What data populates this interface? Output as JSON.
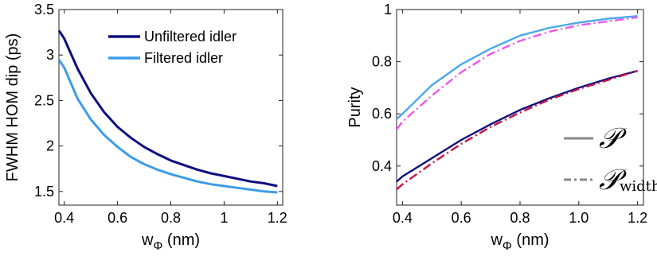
{
  "chart_data": [
    {
      "type": "line",
      "xlabel": "w",
      "xlabel_sub": "Φ",
      "xlabel_unit": " (nm)",
      "ylabel": "FWHM HOM dip (ps)",
      "xlim": [
        0.38,
        1.22
      ],
      "ylim": [
        1.35,
        3.5
      ],
      "xticks": [
        0.4,
        0.6,
        0.8,
        1,
        1.2
      ],
      "xtick_labels": [
        "0.4",
        "0.6",
        "0.8",
        "1",
        "1.2"
      ],
      "yticks": [
        1.5,
        2,
        2.5,
        3,
        3.5
      ],
      "ytick_labels": [
        "1.5",
        "2",
        "2.5",
        "3",
        "3.5"
      ],
      "legend_position": "top-right",
      "series": [
        {
          "name": "Unfiltered idler",
          "color": "#0d0d80",
          "style": "solid",
          "x": [
            0.38,
            0.4,
            0.45,
            0.5,
            0.55,
            0.6,
            0.65,
            0.7,
            0.75,
            0.8,
            0.85,
            0.9,
            0.95,
            1.0,
            1.05,
            1.1,
            1.15,
            1.2
          ],
          "y": [
            3.27,
            3.18,
            2.85,
            2.58,
            2.37,
            2.21,
            2.09,
            1.99,
            1.91,
            1.84,
            1.79,
            1.74,
            1.7,
            1.67,
            1.64,
            1.61,
            1.59,
            1.56
          ]
        },
        {
          "name": "Filtered idler",
          "color": "#3d9be9",
          "style": "solid",
          "x": [
            0.38,
            0.4,
            0.45,
            0.5,
            0.55,
            0.6,
            0.65,
            0.7,
            0.75,
            0.8,
            0.85,
            0.9,
            0.95,
            1.0,
            1.05,
            1.1,
            1.15,
            1.2
          ],
          "y": [
            2.95,
            2.86,
            2.52,
            2.29,
            2.12,
            1.99,
            1.88,
            1.8,
            1.74,
            1.69,
            1.65,
            1.61,
            1.58,
            1.56,
            1.54,
            1.52,
            1.5,
            1.49
          ]
        }
      ]
    },
    {
      "type": "line",
      "xlabel": "w",
      "xlabel_sub": "Φ",
      "xlabel_unit": " (nm)",
      "ylabel": "Purity",
      "xlim": [
        0.38,
        1.22
      ],
      "ylim": [
        0.25,
        1.0
      ],
      "xticks": [
        0.4,
        0.6,
        0.8,
        1.0,
        1.2
      ],
      "xtick_labels": [
        "0.4",
        "0.6",
        "0.8",
        "1.0",
        "1.2"
      ],
      "yticks": [
        0.4,
        0.6,
        0.8,
        1
      ],
      "ytick_labels": [
        "0.4",
        "0.6",
        "0.8",
        "1"
      ],
      "legend_position": "bottom-right",
      "legend": [
        {
          "symbol": "𝒫",
          "subscript": "",
          "style": "solid",
          "color": "#888888"
        },
        {
          "symbol": "𝒫",
          "subscript": "width",
          "style": "dashdot",
          "color": "#888888"
        }
      ],
      "series": [
        {
          "color": "#4aa8ec",
          "style": "solid",
          "x": [
            0.38,
            0.4,
            0.5,
            0.6,
            0.7,
            0.8,
            0.9,
            1.0,
            1.1,
            1.2
          ],
          "y": [
            0.58,
            0.6,
            0.71,
            0.79,
            0.85,
            0.9,
            0.93,
            0.95,
            0.965,
            0.975
          ]
        },
        {
          "color": "#ee55ee",
          "style": "dashdot",
          "x": [
            0.38,
            0.4,
            0.5,
            0.6,
            0.7,
            0.8,
            0.9,
            1.0,
            1.1,
            1.2
          ],
          "y": [
            0.54,
            0.57,
            0.67,
            0.76,
            0.83,
            0.88,
            0.915,
            0.94,
            0.955,
            0.97
          ]
        },
        {
          "color": "#0d0d80",
          "style": "solid",
          "x": [
            0.38,
            0.4,
            0.5,
            0.6,
            0.7,
            0.8,
            0.9,
            1.0,
            1.1,
            1.2
          ],
          "y": [
            0.34,
            0.36,
            0.43,
            0.5,
            0.56,
            0.615,
            0.66,
            0.7,
            0.735,
            0.765
          ]
        },
        {
          "color": "#cc1144",
          "style": "dashdot",
          "x": [
            0.38,
            0.4,
            0.5,
            0.6,
            0.7,
            0.8,
            0.9,
            1.0,
            1.1,
            1.2
          ],
          "y": [
            0.31,
            0.33,
            0.41,
            0.485,
            0.55,
            0.605,
            0.655,
            0.695,
            0.73,
            0.765
          ]
        }
      ]
    }
  ]
}
